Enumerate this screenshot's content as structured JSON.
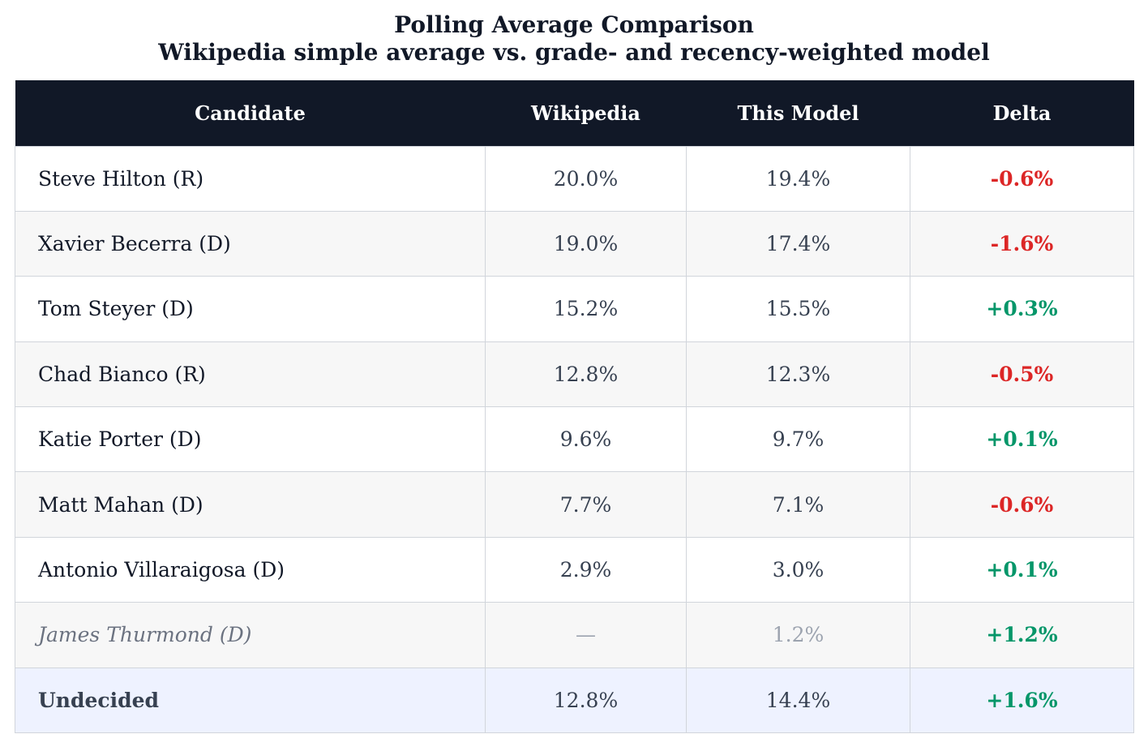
{
  "chart_data": {
    "type": "table",
    "title": "Polling Average Comparison",
    "subtitle": "Wikipedia simple average vs. grade- and recency-weighted model",
    "columns": [
      "Candidate",
      "Wikipedia",
      "This Model",
      "Delta"
    ],
    "rows": [
      {
        "candidate": "Steve Hilton (R)",
        "wikipedia": "20.0%",
        "model": "19.4%",
        "delta": "-0.6%",
        "sign": "neg"
      },
      {
        "candidate": "Xavier Becerra (D)",
        "wikipedia": "19.0%",
        "model": "17.4%",
        "delta": "-1.6%",
        "sign": "neg"
      },
      {
        "candidate": "Tom Steyer (D)",
        "wikipedia": "15.2%",
        "model": "15.5%",
        "delta": "+0.3%",
        "sign": "pos"
      },
      {
        "candidate": "Chad Bianco (R)",
        "wikipedia": "12.8%",
        "model": "12.3%",
        "delta": "-0.5%",
        "sign": "neg"
      },
      {
        "candidate": "Katie Porter (D)",
        "wikipedia": "9.6%",
        "model": "9.7%",
        "delta": "+0.1%",
        "sign": "pos"
      },
      {
        "candidate": "Matt Mahan (D)",
        "wikipedia": "7.7%",
        "model": "7.1%",
        "delta": "-0.6%",
        "sign": "neg"
      },
      {
        "candidate": "Antonio Villaraigosa (D)",
        "wikipedia": "2.9%",
        "model": "3.0%",
        "delta": "+0.1%",
        "sign": "pos"
      },
      {
        "candidate": "James Thurmond (D)",
        "wikipedia": "—",
        "model": "1.2%",
        "delta": "+1.2%",
        "sign": "pos",
        "style": "muted"
      },
      {
        "candidate": "Undecided",
        "wikipedia": "12.8%",
        "model": "14.4%",
        "delta": "+1.6%",
        "sign": "pos",
        "style": "highlight"
      }
    ]
  },
  "colors": {
    "header_bg": "#111827",
    "negative": "#dc2626",
    "positive": "#059669",
    "highlight_row": "#eef2ff",
    "alt_row": "#f7f7f7"
  }
}
